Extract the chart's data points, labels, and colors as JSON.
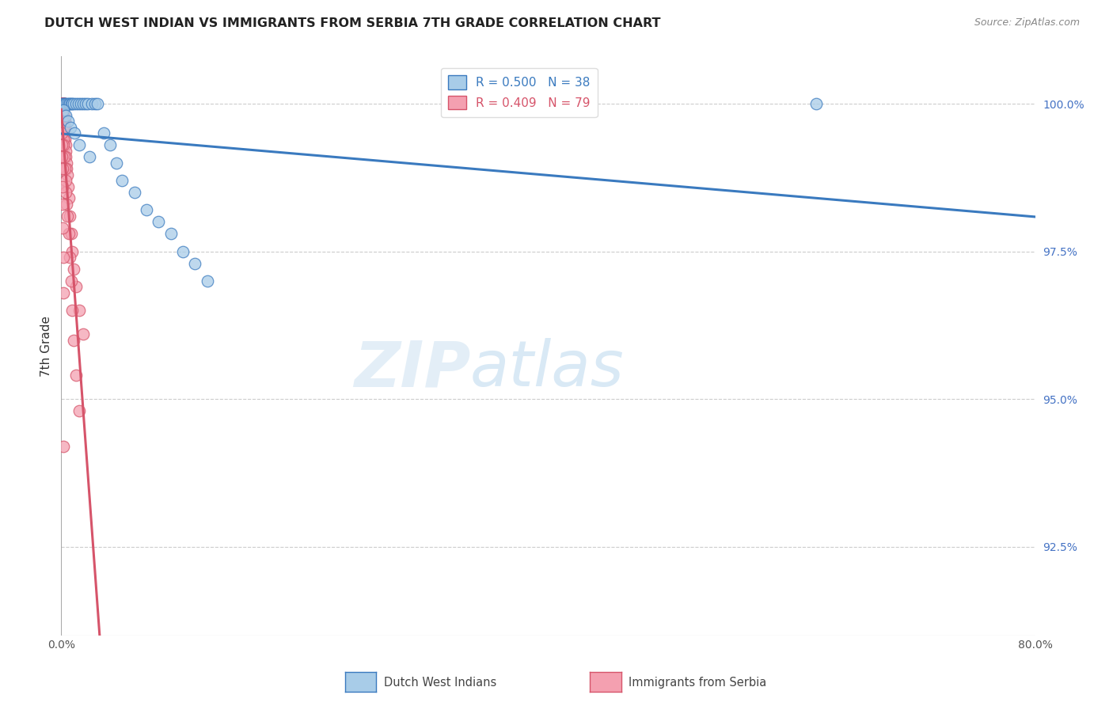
{
  "title": "DUTCH WEST INDIAN VS IMMIGRANTS FROM SERBIA 7TH GRADE CORRELATION CHART",
  "source": "Source: ZipAtlas.com",
  "ylabel": "7th Grade",
  "right_yticks": [
    100.0,
    97.5,
    95.0,
    92.5
  ],
  "right_ytick_labels": [
    "100.0%",
    "97.5%",
    "95.0%",
    "92.5%"
  ],
  "xmin": 0.0,
  "xmax": 80.0,
  "ymin": 91.0,
  "ymax": 100.8,
  "legend_r_blue": "R = 0.500",
  "legend_n_blue": "N = 38",
  "legend_r_pink": "R = 0.409",
  "legend_n_pink": "N = 79",
  "blue_color": "#a8cce8",
  "pink_color": "#f4a0b0",
  "blue_line_color": "#3a7abf",
  "pink_line_color": "#d6546a",
  "watermark_zip": "ZIP",
  "watermark_atlas": "atlas",
  "blue_scatter_x": [
    0.1,
    0.2,
    0.3,
    0.4,
    0.5,
    0.6,
    0.7,
    0.8,
    0.9,
    1.0,
    1.2,
    1.4,
    1.6,
    1.8,
    2.0,
    2.2,
    2.5,
    2.8,
    3.0,
    3.5,
    4.0,
    4.5,
    5.0,
    6.0,
    7.0,
    8.0,
    9.0,
    10.0,
    11.0,
    12.0,
    0.15,
    0.35,
    0.55,
    0.75,
    1.1,
    1.5,
    2.3,
    62.0
  ],
  "blue_scatter_y": [
    100.0,
    100.0,
    100.0,
    100.0,
    100.0,
    100.0,
    100.0,
    100.0,
    100.0,
    100.0,
    100.0,
    100.0,
    100.0,
    100.0,
    100.0,
    100.0,
    100.0,
    100.0,
    100.0,
    99.5,
    99.3,
    99.0,
    98.7,
    98.5,
    98.2,
    98.0,
    97.8,
    97.5,
    97.3,
    97.0,
    99.9,
    99.8,
    99.7,
    99.6,
    99.5,
    99.3,
    99.1,
    100.0
  ],
  "pink_scatter_x": [
    0.02,
    0.03,
    0.04,
    0.05,
    0.06,
    0.07,
    0.08,
    0.09,
    0.1,
    0.1,
    0.1,
    0.1,
    0.1,
    0.12,
    0.12,
    0.13,
    0.14,
    0.15,
    0.15,
    0.16,
    0.17,
    0.18,
    0.19,
    0.2,
    0.2,
    0.21,
    0.22,
    0.23,
    0.25,
    0.25,
    0.27,
    0.28,
    0.3,
    0.3,
    0.32,
    0.35,
    0.38,
    0.4,
    0.42,
    0.45,
    0.5,
    0.55,
    0.6,
    0.7,
    0.8,
    0.9,
    1.0,
    1.2,
    1.5,
    1.8,
    0.08,
    0.1,
    0.12,
    0.15,
    0.18,
    0.2,
    0.25,
    0.3,
    0.35,
    0.4,
    0.45,
    0.5,
    0.6,
    0.7,
    0.8,
    0.9,
    1.0,
    1.2,
    1.5,
    0.05,
    0.06,
    0.07,
    0.08,
    0.09,
    0.1,
    0.12,
    0.15,
    0.18,
    0.2
  ],
  "pink_scatter_y": [
    100.0,
    100.0,
    100.0,
    100.0,
    100.0,
    100.0,
    100.0,
    100.0,
    100.0,
    100.0,
    100.0,
    100.0,
    100.0,
    100.0,
    100.0,
    100.0,
    100.0,
    100.0,
    100.0,
    100.0,
    100.0,
    100.0,
    100.0,
    100.0,
    100.0,
    100.0,
    100.0,
    100.0,
    100.0,
    100.0,
    99.8,
    99.7,
    99.6,
    99.5,
    99.4,
    99.3,
    99.2,
    99.1,
    99.0,
    98.9,
    98.8,
    98.6,
    98.4,
    98.1,
    97.8,
    97.5,
    97.2,
    96.9,
    96.5,
    96.1,
    99.9,
    99.8,
    99.7,
    99.6,
    99.4,
    99.3,
    99.1,
    98.9,
    98.7,
    98.5,
    98.3,
    98.1,
    97.8,
    97.4,
    97.0,
    96.5,
    96.0,
    95.4,
    94.8,
    99.5,
    99.3,
    99.1,
    98.9,
    98.6,
    98.3,
    97.9,
    97.4,
    96.8,
    94.2
  ]
}
